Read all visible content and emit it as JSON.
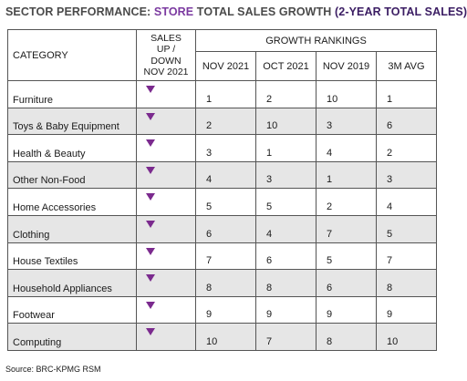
{
  "title": {
    "prefix": "SECTOR PERFORMANCE: ",
    "accent": "STORE",
    "middle": " TOTAL SALES GROWTH ",
    "suffix": "(2-YEAR TOTAL SALES)"
  },
  "table": {
    "headers": {
      "category": "CATEGORY",
      "sales_line1": "SALES",
      "sales_line2": "UP /",
      "sales_line3": "DOWN",
      "sales_line4": "NOV 2021",
      "growth_rankings": "GROWTH RANKINGS",
      "nov2021": "NOV 2021",
      "oct2021": "OCT 2021",
      "nov2019": "NOV 2019",
      "avg3m": "3M AVG"
    },
    "rows": [
      {
        "category": "Furniture",
        "direction": "down",
        "nov2021": "1",
        "oct2021": "2",
        "nov2019": "10",
        "avg3m": "1"
      },
      {
        "category": "Toys & Baby Equipment",
        "direction": "down",
        "nov2021": "2",
        "oct2021": "10",
        "nov2019": "3",
        "avg3m": "6"
      },
      {
        "category": "Health & Beauty",
        "direction": "down",
        "nov2021": "3",
        "oct2021": "1",
        "nov2019": "4",
        "avg3m": "2"
      },
      {
        "category": "Other Non-Food",
        "direction": "down",
        "nov2021": "4",
        "oct2021": "3",
        "nov2019": "1",
        "avg3m": "3"
      },
      {
        "category": "Home Accessories",
        "direction": "down",
        "nov2021": "5",
        "oct2021": "5",
        "nov2019": "2",
        "avg3m": "4"
      },
      {
        "category": "Clothing",
        "direction": "down",
        "nov2021": "6",
        "oct2021": "4",
        "nov2019": "7",
        "avg3m": "5"
      },
      {
        "category": "House Textiles",
        "direction": "down",
        "nov2021": "7",
        "oct2021": "6",
        "nov2019": "5",
        "avg3m": "7"
      },
      {
        "category": "Household Appliances",
        "direction": "down",
        "nov2021": "8",
        "oct2021": "8",
        "nov2019": "6",
        "avg3m": "8"
      },
      {
        "category": "Footwear",
        "direction": "down",
        "nov2021": "9",
        "oct2021": "9",
        "nov2019": "9",
        "avg3m": "9"
      },
      {
        "category": "Computing",
        "direction": "down",
        "nov2021": "10",
        "oct2021": "7",
        "nov2019": "8",
        "avg3m": "10"
      }
    ]
  },
  "source": "Source: BRC-KPMG RSM",
  "colors": {
    "accent": "#7b3aa0",
    "title_dark": "#3b1d63",
    "down_arrow": "#7b2a8e",
    "row_shade": "#e6e6e6"
  }
}
